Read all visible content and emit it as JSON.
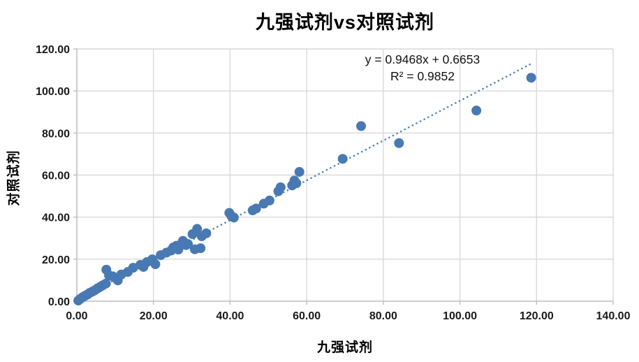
{
  "title": "九强试剂vs对照试剂",
  "chart_data": {
    "type": "scatter",
    "title": "九强试剂vs对照试剂",
    "xlabel": "九强试剂",
    "ylabel": "对照试剂",
    "xlim": [
      0,
      140
    ],
    "ylim": [
      0,
      120
    ],
    "x_tick_step": 20,
    "y_tick_step": 20,
    "tick_decimals": 2,
    "grid": true,
    "legend": "none",
    "annotation": {
      "line1": "y = 0.9468x + 0.6653",
      "line2": "R² = 0.9852"
    },
    "trendline": {
      "slope": 0.9468,
      "intercept": 0.6653,
      "x_start": 0,
      "x_end": 119,
      "style": "dotted"
    },
    "points": [
      [
        0.4,
        0.3
      ],
      [
        0.9,
        1.1
      ],
      [
        1.5,
        1.9
      ],
      [
        2.2,
        2.6
      ],
      [
        2.8,
        3.2
      ],
      [
        3.4,
        4.0
      ],
      [
        4.1,
        4.6
      ],
      [
        4.7,
        5.2
      ],
      [
        5.4,
        6.1
      ],
      [
        6.1,
        6.8
      ],
      [
        6.8,
        7.6
      ],
      [
        7.6,
        8.4
      ],
      [
        7.7,
        15.0
      ],
      [
        8.4,
        12.3
      ],
      [
        9.4,
        11.8
      ],
      [
        10.7,
        9.9
      ],
      [
        11.6,
        12.7
      ],
      [
        13.3,
        13.9
      ],
      [
        14.7,
        15.9
      ],
      [
        16.6,
        17.3
      ],
      [
        17.4,
        16.3
      ],
      [
        18.3,
        18.6
      ],
      [
        19.7,
        19.9
      ],
      [
        20.5,
        17.6
      ],
      [
        21.9,
        21.9
      ],
      [
        23.4,
        23.1
      ],
      [
        24.6,
        24.1
      ],
      [
        25.2,
        25.6
      ],
      [
        26.0,
        26.4
      ],
      [
        26.5,
        24.6
      ],
      [
        27.2,
        27.1
      ],
      [
        27.7,
        28.7
      ],
      [
        28.5,
        26.7
      ],
      [
        29.0,
        27.2
      ],
      [
        30.2,
        31.9
      ],
      [
        30.8,
        24.7
      ],
      [
        31.4,
        34.4
      ],
      [
        32.3,
        25.2
      ],
      [
        32.6,
        30.9
      ],
      [
        33.8,
        32.3
      ],
      [
        39.8,
        42.0
      ],
      [
        40.4,
        40.4
      ],
      [
        41.0,
        39.8
      ],
      [
        45.9,
        43.2
      ],
      [
        46.8,
        44.1
      ],
      [
        48.8,
        46.4
      ],
      [
        50.3,
        47.9
      ],
      [
        52.6,
        52.3
      ],
      [
        53.2,
        54.2
      ],
      [
        56.2,
        55.1
      ],
      [
        56.8,
        57.4
      ],
      [
        57.3,
        56.1
      ],
      [
        58.1,
        61.5
      ],
      [
        69.4,
        67.7
      ],
      [
        74.2,
        83.3
      ],
      [
        84.1,
        75.2
      ],
      [
        104.3,
        90.7
      ],
      [
        118.6,
        106.3
      ]
    ],
    "colors": {
      "marker": "#4979b2",
      "trendline": "#5183bd",
      "gridline": "#d9d9d9",
      "axis_line": "#bfbfbf",
      "tick_text": "#1a1a1a"
    }
  }
}
